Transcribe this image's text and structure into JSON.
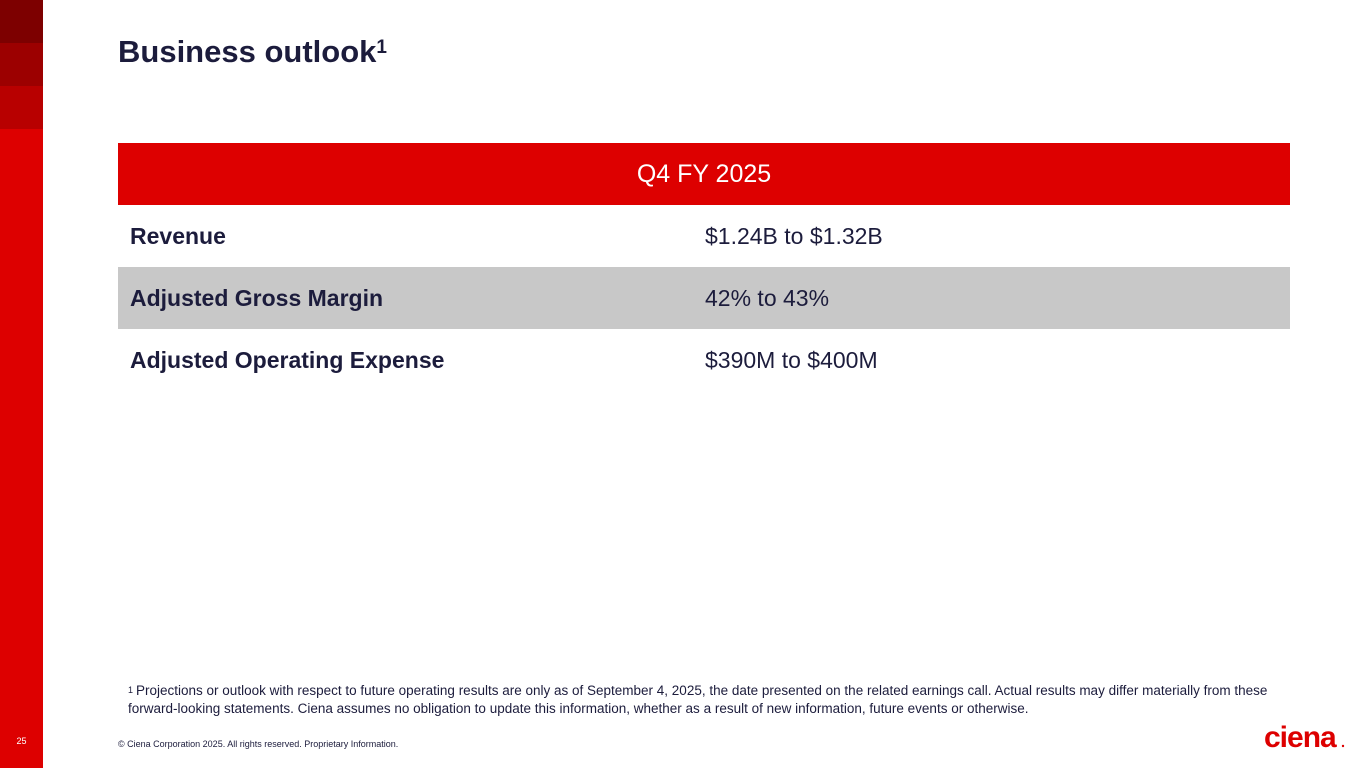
{
  "slide": {
    "number": "25",
    "title": "Business outlook",
    "title_footnote_marker": "1"
  },
  "table": {
    "header": "Q4 FY 2025",
    "rows": [
      {
        "label": "Revenue",
        "value": "$1.24B to $1.32B"
      },
      {
        "label": "Adjusted Gross Margin",
        "value": "42% to 43%"
      },
      {
        "label": "Adjusted Operating Expense",
        "value": "$390M to $400M"
      }
    ]
  },
  "footnote": {
    "marker": "1",
    "text": "Projections or outlook with respect to future operating results are only as of September 4, 2025, the date presented on the related earnings call. Actual results may differ materially from these forward-looking statements. Ciena assumes no obligation to update this information, whether as a result of new information, future events or otherwise."
  },
  "footer": {
    "copyright": "© Ciena Corporation 2025. All rights reserved. Proprietary Information.",
    "logo_text": "ciena"
  },
  "colors": {
    "brand_red": "#dd0000",
    "navy_text": "#1c1c3c",
    "row_shade": "#c8c8c8"
  }
}
